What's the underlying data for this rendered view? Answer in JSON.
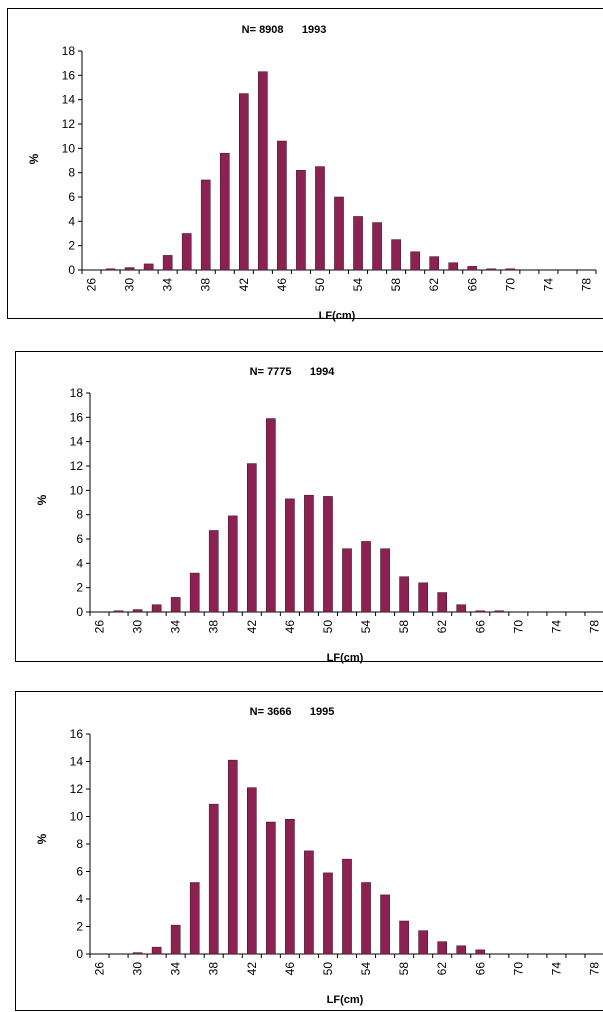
{
  "bar_color": "#8B2252",
  "chart_data": [
    {
      "type": "bar",
      "title": "N= 8908      1993",
      "xlabel": "LF(cm)",
      "ylabel": "%",
      "ylim": [
        0,
        18
      ],
      "yticks": [
        0,
        2,
        4,
        6,
        8,
        10,
        12,
        14,
        16,
        18
      ],
      "xtick_labels": [
        "26",
        "30",
        "34",
        "38",
        "42",
        "46",
        "50",
        "54",
        "58",
        "62",
        "66",
        "70",
        "74",
        "78"
      ],
      "categories": [
        26,
        28,
        30,
        32,
        34,
        36,
        38,
        40,
        42,
        44,
        46,
        48,
        50,
        52,
        54,
        56,
        58,
        60,
        62,
        64,
        66,
        68,
        70,
        72,
        74,
        76,
        78
      ],
      "values": [
        0,
        0.1,
        0.2,
        0.5,
        1.2,
        3.0,
        7.4,
        9.6,
        14.5,
        16.3,
        10.6,
        8.2,
        8.5,
        6.0,
        4.4,
        3.9,
        2.5,
        1.5,
        1.1,
        0.6,
        0.3,
        0.1,
        0.1,
        0,
        0,
        0,
        0
      ],
      "grid": false
    },
    {
      "type": "bar",
      "title": "N= 7775      1994",
      "xlabel": "LF(cm)",
      "ylabel": "%",
      "ylim": [
        0,
        18
      ],
      "yticks": [
        0,
        2,
        4,
        6,
        8,
        10,
        12,
        14,
        16,
        18
      ],
      "xtick_labels": [
        "26",
        "30",
        "34",
        "38",
        "42",
        "46",
        "50",
        "54",
        "58",
        "62",
        "66",
        "70",
        "74",
        "78"
      ],
      "categories": [
        26,
        28,
        30,
        32,
        34,
        36,
        38,
        40,
        42,
        44,
        46,
        48,
        50,
        52,
        54,
        56,
        58,
        60,
        62,
        64,
        66,
        68,
        70,
        72,
        74,
        76,
        78
      ],
      "values": [
        0,
        0.1,
        0.2,
        0.6,
        1.2,
        3.2,
        6.7,
        7.9,
        12.2,
        15.9,
        9.3,
        9.6,
        9.5,
        5.2,
        5.8,
        5.2,
        2.9,
        2.4,
        1.6,
        0.6,
        0.1,
        0.1,
        0,
        0,
        0,
        0,
        0
      ],
      "grid": false
    },
    {
      "type": "bar",
      "title": "N= 3666      1995",
      "xlabel": "LF(cm)",
      "ylabel": "%",
      "ylim": [
        0,
        16
      ],
      "yticks": [
        0,
        2,
        4,
        6,
        8,
        10,
        12,
        14,
        16
      ],
      "xtick_labels": [
        "26",
        "30",
        "34",
        "38",
        "42",
        "46",
        "50",
        "54",
        "58",
        "62",
        "66",
        "70",
        "74",
        "78"
      ],
      "categories": [
        26,
        28,
        30,
        32,
        34,
        36,
        38,
        40,
        42,
        44,
        46,
        48,
        50,
        52,
        54,
        56,
        58,
        60,
        62,
        64,
        66,
        68,
        70,
        72,
        74,
        76,
        78
      ],
      "values": [
        0,
        0,
        0.1,
        0.5,
        2.1,
        5.2,
        10.9,
        14.1,
        12.1,
        9.6,
        9.8,
        7.5,
        5.9,
        6.9,
        5.2,
        4.3,
        2.4,
        1.7,
        0.9,
        0.6,
        0.3,
        0,
        0,
        0,
        0,
        0,
        0
      ],
      "grid": false
    }
  ]
}
